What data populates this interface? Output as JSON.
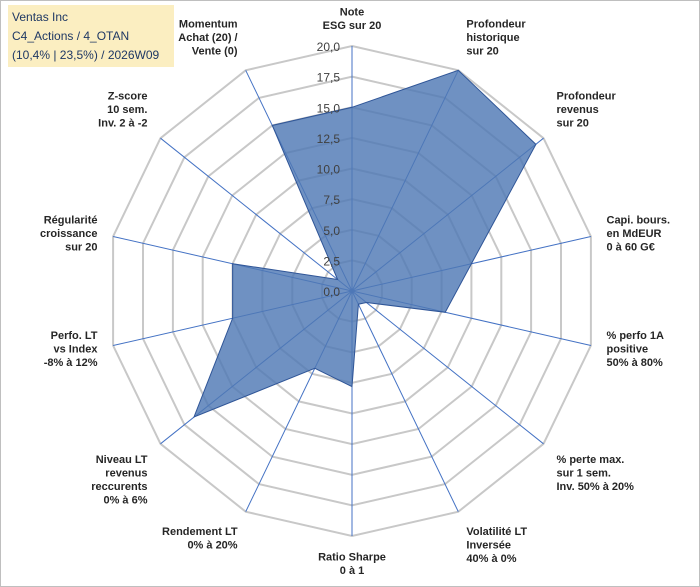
{
  "header": {
    "company": "Ventas Inc",
    "portfolio": "C4_Actions / 4_OTAN",
    "stats": "(10,4% | 23,5%) / 2026W09"
  },
  "colors": {
    "grid": "#c8c8c8",
    "spoke": "#4472c4",
    "fill": "#4f79b5",
    "stroke": "#2f5597"
  },
  "chart_data": {
    "type": "radar",
    "title": "",
    "rmin": 0,
    "rmax": 20,
    "ticks": [
      "0,0",
      "2,5",
      "5,0",
      "7,5",
      "10,0",
      "12,5",
      "15,0",
      "17,5",
      "20,0"
    ],
    "axes": [
      {
        "label": [
          "Note",
          "ESG sur 20"
        ],
        "value": 15.0
      },
      {
        "label": [
          "Profondeur",
          "historique",
          "sur 20"
        ],
        "value": 20.0
      },
      {
        "label": [
          "Profondeur",
          "revenus",
          "sur 20"
        ],
        "value": 19.2
      },
      {
        "label": [
          "Capi. bours.",
          "en MdEUR",
          "0 à 60 G€"
        ],
        "value": 10.0
      },
      {
        "label": [
          "% perfo 1A",
          "positive",
          "50% à 80%"
        ],
        "value": 7.8
      },
      {
        "label": [
          "% perte max.",
          "sur 1 sem.",
          "Inv. 50% à 20%"
        ],
        "value": 1.5
      },
      {
        "label": [
          "Volatilité LT",
          "Inversée",
          "40% à 0%"
        ],
        "value": 1.2
      },
      {
        "label": [
          "Ratio Sharpe",
          "0 à 1"
        ],
        "value": 7.8
      },
      {
        "label": [
          "Rendement LT",
          "0% à 20%"
        ],
        "value": 7.0
      },
      {
        "label": [
          "Niveau LT",
          "revenus",
          "reccurents",
          "0% à 6%"
        ],
        "value": 16.5
      },
      {
        "label": [
          "Perfo. LT",
          "vs Index",
          "-8% à 12%"
        ],
        "value": 10.0
      },
      {
        "label": [
          "Régularité",
          "croissance",
          "sur 20"
        ],
        "value": 10.0
      },
      {
        "label": [
          "Z-score",
          "10 sem.",
          "Inv. 2 à -2"
        ],
        "value": 1.5
      },
      {
        "label": [
          "Momentum",
          "Achat (20) /",
          "Vente (0)"
        ],
        "value": 15.0
      }
    ]
  }
}
